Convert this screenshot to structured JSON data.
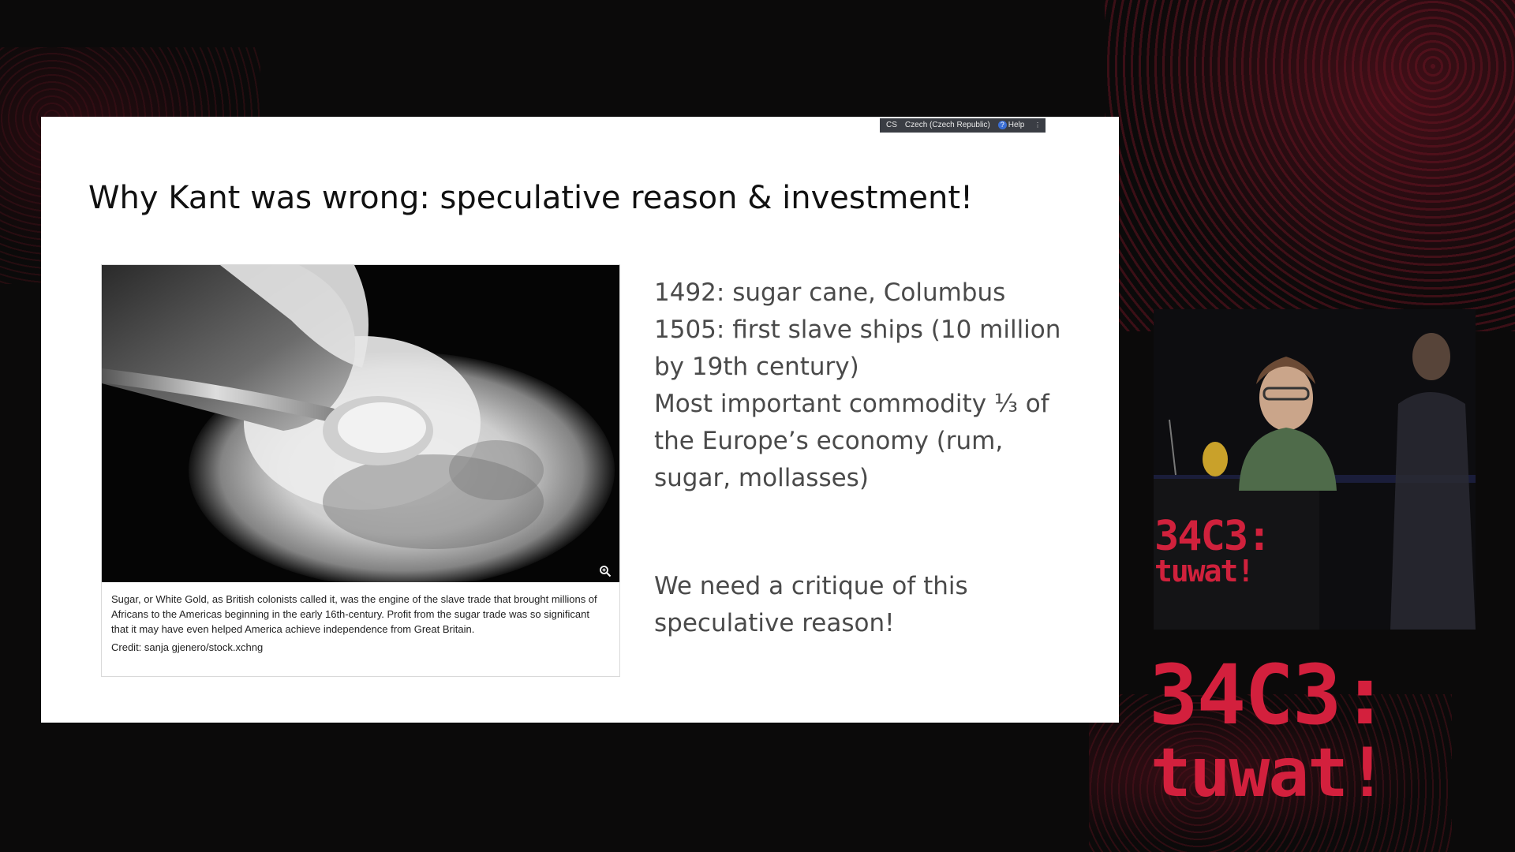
{
  "slide": {
    "language_bar": {
      "code": "CS",
      "language": "Czech (Czech Republic)",
      "help_label": "Help"
    },
    "title": "Why Kant was wrong: speculative reason & investment!",
    "photo": {
      "caption": "Sugar, or White Gold, as British colonists called it, was the engine of the slave trade that brought millions of Africans to the Americas beginning in the early 16th-century. Profit from the sugar trade was so significant that it may have even helped America achieve independence from Great Britain.",
      "credit": "Credit: sanja gjenero/stock.xchng",
      "zoom_icon": "magnifier-plus-icon"
    },
    "bullets": [
      "1492: sugar cane, Columbus",
      "1505: first slave ships (10 million by 19th century)",
      "Most important commodity ⅓ of the Europe’s economy (rum, sugar, mollasses)"
    ],
    "closing": "We need a critique of this speculative reason!"
  },
  "event_logo": {
    "line1": "34C3:",
    "line2": "tuwat!"
  },
  "colors": {
    "background": "#0b0a0a",
    "accent_red": "#d3203d",
    "slide_bg": "#ffffff",
    "body_text": "#4a4a4a"
  }
}
